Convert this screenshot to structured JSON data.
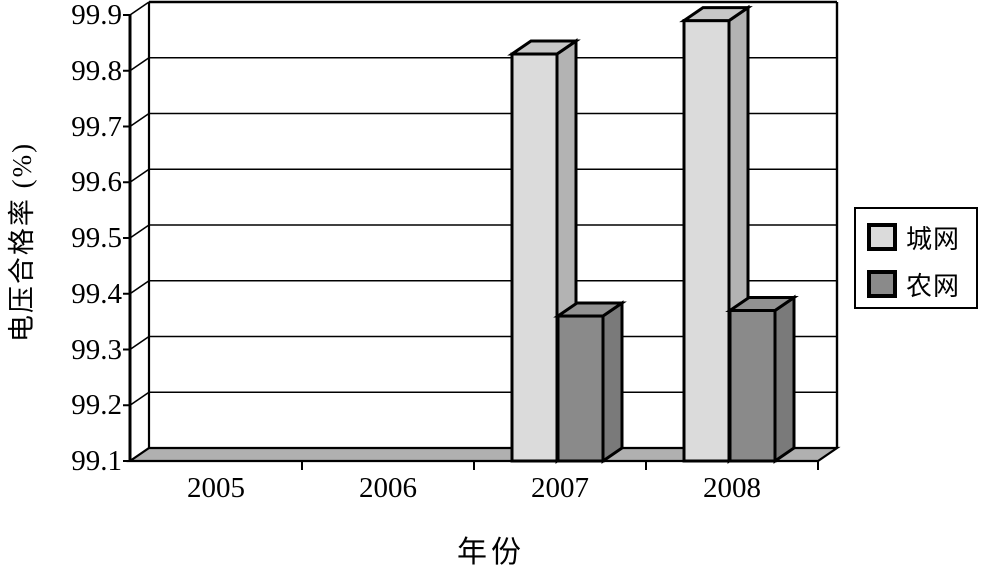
{
  "chart_data": {
    "type": "bar",
    "projection": "3d",
    "title": "",
    "xlabel": "年份",
    "ylabel": "电压合格率 (%)",
    "categories": [
      "2005",
      "2006",
      "2007",
      "2008"
    ],
    "series": [
      {
        "name": "城网",
        "values": [
          null,
          null,
          99.83,
          99.89
        ],
        "color": "#dbdbdb",
        "top_color": "#c7c7c7",
        "side_color": "#b3b3b3"
      },
      {
        "name": "农网",
        "values": [
          null,
          null,
          99.36,
          99.37
        ],
        "color": "#8a8a8a",
        "top_color": "#929292",
        "side_color": "#7a7a7a"
      }
    ],
    "ylim": [
      99.1,
      99.9
    ],
    "ytick_step": 0.1,
    "ytick_labels": [
      "99.1",
      "99.2",
      "99.3",
      "99.4",
      "99.5",
      "99.6",
      "99.7",
      "99.8",
      "99.9"
    ],
    "grid": true,
    "legend_position": "right",
    "floor_color": "#b0b0b0",
    "line_color": "#000000",
    "background_color": "#ffffff"
  }
}
